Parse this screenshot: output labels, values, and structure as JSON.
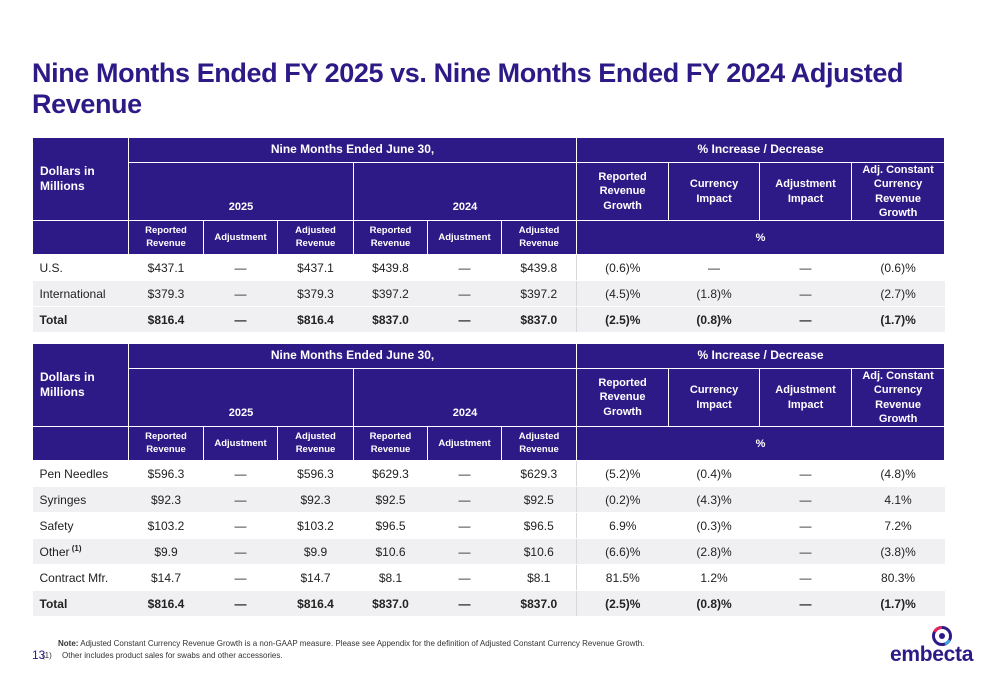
{
  "title": "Nine Months Ended FY 2025 vs. Nine Months Ended FY 2024 Adjusted Revenue",
  "header": {
    "corner": "Dollars in Millions",
    "period": "Nine Months Ended June 30,",
    "pct_group": "% Increase / Decrease",
    "year1": "2025",
    "year2": "2024",
    "reported_revenue_growth": "Reported Revenue Growth",
    "currency_impact": "Currency Impact",
    "adjustment_impact": "Adjustment Impact",
    "adj_cc_growth": "Adj. Constant Currency Revenue Growth",
    "reported_revenue": "Reported Revenue",
    "adjustment": "Adjustment",
    "adjusted_revenue": "Adjusted Revenue",
    "pct": "%"
  },
  "table1": {
    "rows": [
      {
        "label": "U.S.",
        "c": [
          "$437.1",
          "—",
          "$437.1",
          "$439.8",
          "—",
          "$439.8",
          "(0.6)%",
          "—",
          "—",
          "(0.6)%"
        ]
      },
      {
        "label": "International",
        "c": [
          "$379.3",
          "—",
          "$379.3",
          "$397.2",
          "—",
          "$397.2",
          "(4.5)%",
          "(1.8)%",
          "—",
          "(2.7)%"
        ]
      }
    ],
    "total": {
      "label": "Total",
      "c": [
        "$816.4",
        "—",
        "$816.4",
        "$837.0",
        "—",
        "$837.0",
        "(2.5)%",
        "(0.8)%",
        "—",
        "(1.7)%"
      ]
    }
  },
  "table2": {
    "rows": [
      {
        "label": "Pen Needles",
        "c": [
          "$596.3",
          "—",
          "$596.3",
          "$629.3",
          "—",
          "$629.3",
          "(5.2)%",
          "(0.4)%",
          "—",
          "(4.8)%"
        ]
      },
      {
        "label": "Syringes",
        "c": [
          "$92.3",
          "—",
          "$92.3",
          "$92.5",
          "—",
          "$92.5",
          "(0.2)%",
          "(4.3)%",
          "—",
          "4.1%"
        ]
      },
      {
        "label": "Safety",
        "c": [
          "$103.2",
          "—",
          "$103.2",
          "$96.5",
          "—",
          "$96.5",
          "6.9%",
          "(0.3)%",
          "—",
          "7.2%"
        ]
      },
      {
        "label": "Other",
        "sup": "(1)",
        "c": [
          "$9.9",
          "—",
          "$9.9",
          "$10.6",
          "—",
          "$10.6",
          "(6.6)%",
          "(2.8)%",
          "—",
          "(3.8)%"
        ]
      },
      {
        "label": "Contract Mfr.",
        "c": [
          "$14.7",
          "—",
          "$14.7",
          "$8.1",
          "—",
          "$8.1",
          "81.5%",
          "1.2%",
          "—",
          "80.3%"
        ]
      }
    ],
    "total": {
      "label": "Total",
      "c": [
        "$816.4",
        "—",
        "$816.4",
        "$837.0",
        "—",
        "$837.0",
        "(2.5)%",
        "(0.8)%",
        "—",
        "(1.7)%"
      ]
    }
  },
  "notes": {
    "note_label": "Note:",
    "note_text": "Adjusted Constant Currency Revenue Growth is a non-GAAP measure. Please see Appendix for the definition of Adjusted Constant Currency Revenue Growth.",
    "fn_marker": "(1)",
    "fn_text": "Other includes product sales for swabs and other accessories."
  },
  "page_number": "13",
  "brand": {
    "name": "embecta",
    "color": "#2e1a87",
    "accent_red": "#e0245e",
    "accent_blue": "#3aa0e0"
  }
}
